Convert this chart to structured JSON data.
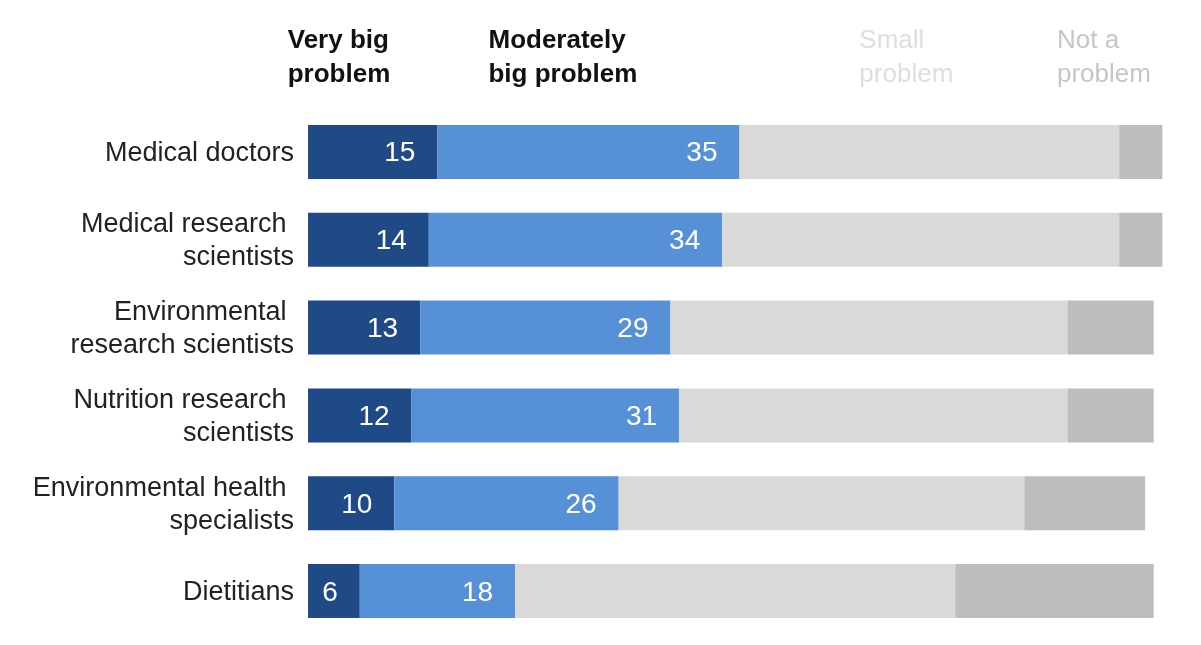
{
  "chart_data": {
    "type": "bar",
    "orientation": "horizontal",
    "stacked": true,
    "legend": "top",
    "tick_labels": "y",
    "categories": [
      "Medical doctors",
      "Medical research scientists",
      "Environmental research scientists",
      "Nutrition research scientists",
      "Environmental health specialists",
      "Dietitians"
    ],
    "series": [
      {
        "name": "Very big problem",
        "color": "#1f4a85",
        "values": [
          15,
          14,
          13,
          12,
          10,
          6
        ],
        "value_labels": [
          "15",
          "14",
          "13",
          "12",
          "10",
          "6"
        ]
      },
      {
        "name": "Moderately big problem",
        "color": "#5691d8",
        "values": [
          35,
          34,
          29,
          31,
          26,
          18
        ],
        "value_labels": [
          "35",
          "34",
          "29",
          "31",
          "26",
          "18"
        ]
      },
      {
        "name": "Small problem",
        "color": "#d9d9d9",
        "values": [
          44,
          46,
          46,
          45,
          47,
          51
        ]
      },
      {
        "name": "Not a problem",
        "color": "#bdbdbd",
        "values": [
          5,
          5,
          10,
          10,
          14,
          23
        ]
      }
    ]
  }
}
